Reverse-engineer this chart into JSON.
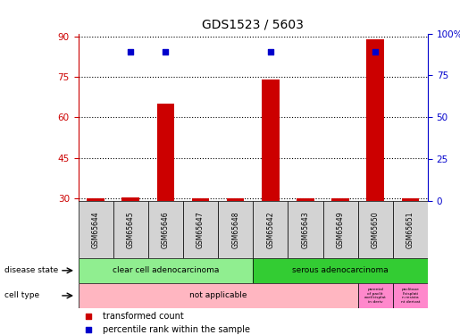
{
  "title": "GDS1523 / 5603",
  "samples": [
    "GSM65644",
    "GSM65645",
    "GSM65646",
    "GSM65647",
    "GSM65648",
    "GSM65642",
    "GSM65643",
    "GSM65649",
    "GSM65650",
    "GSM65651"
  ],
  "transformed_count": [
    30,
    30.3,
    65,
    30,
    30,
    74,
    30,
    30,
    89,
    30
  ],
  "percentile_rank": [
    null,
    89,
    89,
    null,
    null,
    89,
    null,
    null,
    89,
    null
  ],
  "ylim_left": [
    29,
    91
  ],
  "ylim_right": [
    0,
    100
  ],
  "yticks_left": [
    30,
    45,
    60,
    75,
    90
  ],
  "yticks_right": [
    0,
    25,
    50,
    75,
    100
  ],
  "ytick_labels_right": [
    "0",
    "25",
    "50",
    "75",
    "100%"
  ],
  "bar_color": "#cc0000",
  "scatter_color": "#0000cc",
  "disease_states": [
    "clear cell adenocarcinoma",
    "serous adenocarcinoma"
  ],
  "disease_state_color1": "#90ee90",
  "disease_state_color2": "#33cc33",
  "cell_type_label": "not applicable",
  "cell_type_color": "#ffb6c1",
  "cell_type_extra_color": "#ff88cc",
  "cell_type_extra1": "parental\nof paclit\naxel/cisplat\nin deriv",
  "cell_type_extra2": "paclitaxe\nl/cisplati\nn resista\nnt derivat",
  "left_axis_color": "#cc0000",
  "right_axis_color": "#0000cc",
  "bar_width": 0.5,
  "legend_items": [
    "transformed count",
    "percentile rank within the sample"
  ],
  "sample_box_color": "#d3d3d3"
}
